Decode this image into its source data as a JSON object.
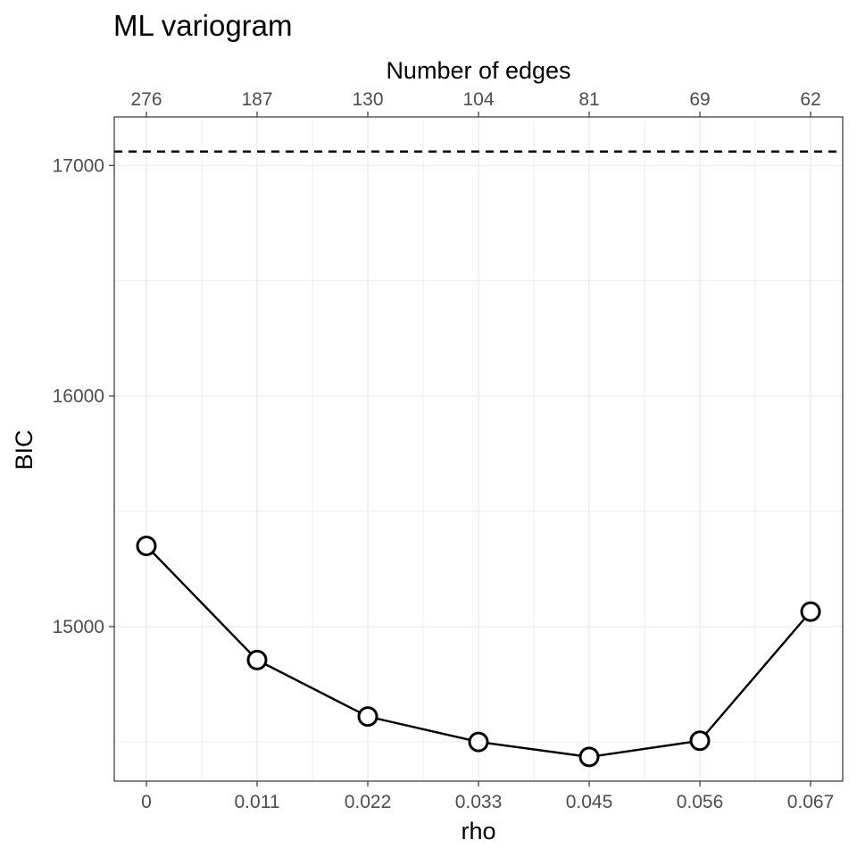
{
  "chart_data": {
    "type": "line",
    "title": "ML variogram",
    "xlabel": "rho",
    "ylabel": "BIC",
    "x2label": "Number of edges",
    "x": [
      0,
      0.011,
      0.022,
      0.033,
      0.045,
      0.056,
      0.067
    ],
    "x_tick_labels": [
      "0",
      "0.011",
      "0.022",
      "0.033",
      "0.045",
      "0.056",
      "0.067"
    ],
    "x2_tick_labels": [
      "276",
      "187",
      "130",
      "104",
      "81",
      "69",
      "62"
    ],
    "series": [
      {
        "values": [
          15350,
          14855,
          14610,
          14500,
          14435,
          14505,
          15065
        ]
      }
    ],
    "reference_line": {
      "y": 17060,
      "style": "dashed"
    },
    "y_ticks": [
      15000,
      16000,
      17000
    ],
    "y_tick_labels": [
      "15000",
      "16000",
      "17000"
    ],
    "ylim": [
      14330,
      17210
    ],
    "grid": true,
    "colors": {
      "line": "#000000",
      "marker_fill": "#ffffff",
      "grid": "#ebebeb",
      "panel_border": "#333333"
    }
  }
}
